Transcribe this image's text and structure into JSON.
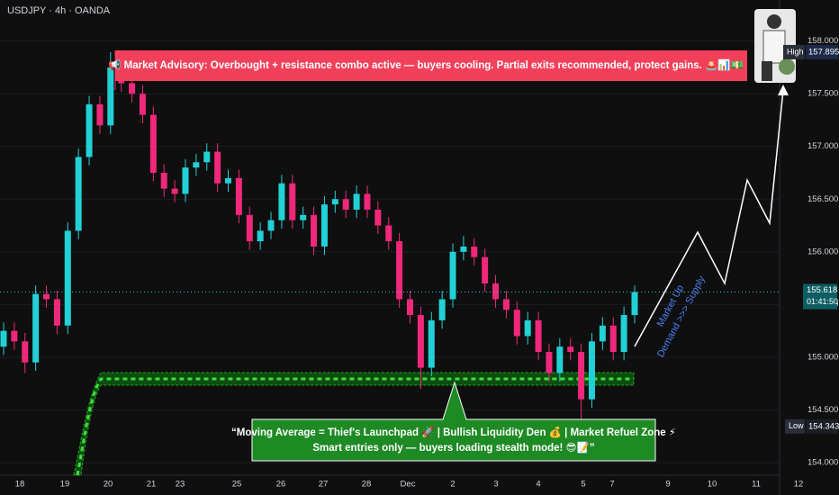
{
  "chart_data": {
    "type": "candlestick",
    "title": "USDJPY · 4h · OANDA",
    "open": [
      155.1,
      155.25,
      155.15,
      154.95,
      155.6,
      155.55,
      155.3,
      156.2,
      156.9,
      157.4,
      157.2,
      157.75,
      157.6,
      157.5,
      157.3,
      156.75,
      156.6,
      156.55,
      156.8,
      156.85,
      156.95,
      156.65,
      156.7,
      156.35,
      156.1,
      156.2,
      156.3,
      156.65,
      156.3,
      156.35,
      156.05,
      156.45,
      156.5,
      156.4,
      156.55,
      156.4,
      156.25,
      156.1,
      155.55,
      155.4,
      154.9,
      155.35,
      155.55,
      156.0,
      156.05,
      155.95,
      155.7,
      155.55,
      155.45,
      155.2,
      155.35,
      155.05,
      154.85,
      155.1,
      155.05,
      154.6,
      155.15,
      155.3,
      155.05,
      155.4
    ],
    "high": [
      155.33,
      155.33,
      155.23,
      155.68,
      155.68,
      155.63,
      156.28,
      156.98,
      157.48,
      157.48,
      157.895,
      157.83,
      157.68,
      157.58,
      157.38,
      156.83,
      156.68,
      156.88,
      156.93,
      157.03,
      157.03,
      156.78,
      156.78,
      156.43,
      156.28,
      156.38,
      156.73,
      156.73,
      156.43,
      156.43,
      156.53,
      156.58,
      156.58,
      156.63,
      156.63,
      156.48,
      156.33,
      156.18,
      155.63,
      155.48,
      155.43,
      155.63,
      156.08,
      156.15,
      156.13,
      156.03,
      155.78,
      155.63,
      155.53,
      155.43,
      155.43,
      155.13,
      155.18,
      155.18,
      155.13,
      155.23,
      155.38,
      155.38,
      155.48,
      155.68
    ],
    "low": [
      155.02,
      155.07,
      154.85,
      154.87,
      155.47,
      155.22,
      155.22,
      156.12,
      156.82,
      157.12,
      157.12,
      157.52,
      157.42,
      157.22,
      156.67,
      156.52,
      156.47,
      156.47,
      156.72,
      156.77,
      156.57,
      156.57,
      156.27,
      156.02,
      156.02,
      156.12,
      156.22,
      156.22,
      156.22,
      155.97,
      155.97,
      156.37,
      156.32,
      156.32,
      156.32,
      156.17,
      156.02,
      155.47,
      155.32,
      154.7,
      154.82,
      155.27,
      155.47,
      155.92,
      155.87,
      155.62,
      155.47,
      155.37,
      155.12,
      155.12,
      154.97,
      154.77,
      154.77,
      154.97,
      154.343,
      154.52,
      155.07,
      154.97,
      154.97,
      155.32
    ],
    "close": [
      155.25,
      155.15,
      154.95,
      155.6,
      155.55,
      155.3,
      156.2,
      156.9,
      157.4,
      157.2,
      157.75,
      157.6,
      157.5,
      157.3,
      156.75,
      156.6,
      156.55,
      156.8,
      156.85,
      156.95,
      156.65,
      156.7,
      156.35,
      156.1,
      156.2,
      156.3,
      156.65,
      156.3,
      156.35,
      156.05,
      156.45,
      156.5,
      156.4,
      156.55,
      156.4,
      156.25,
      156.1,
      155.55,
      155.4,
      154.9,
      155.35,
      155.55,
      156.0,
      156.05,
      155.95,
      155.7,
      155.55,
      155.45,
      155.2,
      155.35,
      155.05,
      154.85,
      155.1,
      155.05,
      154.6,
      155.15,
      155.3,
      155.05,
      155.4,
      155.618
    ],
    "up_color": "#22d1d6",
    "down_color": "#f0287a",
    "ylim": [
      153.88,
      158.39
    ],
    "yticks": [
      {
        "value": 154,
        "label": "154.000"
      },
      {
        "value": 154.5,
        "label": "154.500"
      },
      {
        "value": 155,
        "label": "155.000"
      },
      {
        "value": 155.5,
        "label": "155.500"
      },
      {
        "value": 156,
        "label": "156.000"
      },
      {
        "value": 156.5,
        "label": "156.500"
      },
      {
        "value": 157,
        "label": "157.000"
      },
      {
        "value": 157.5,
        "label": "157.500"
      },
      {
        "value": 158,
        "label": "158.000"
      }
    ],
    "grid": true,
    "x_labels": [
      "18",
      "19",
      "20",
      "21",
      "23",
      "25",
      "26",
      "27",
      "28",
      "Dec",
      "2",
      "3",
      "4",
      "5",
      "7",
      "9",
      "10",
      "11",
      "12"
    ],
    "countdown": "01:41:50",
    "high_tag": "High",
    "low_tag": "Low",
    "advisory": "📢 Market Advisory: Overbought + resistance combo active — buyers cooling. Partial exits recommended, protect gains. 🚨📊💵",
    "callout": [
      "“Moving Average = Thief's Launchpad 🚀 | Bullish Liquidity Den 💰 | Market Refuel Zone ⚡",
      "Smart entries only — buyers loading stealth mode! 😎📝”"
    ],
    "projection": [
      "Market Up",
      "Demand >>> Supply"
    ]
  }
}
